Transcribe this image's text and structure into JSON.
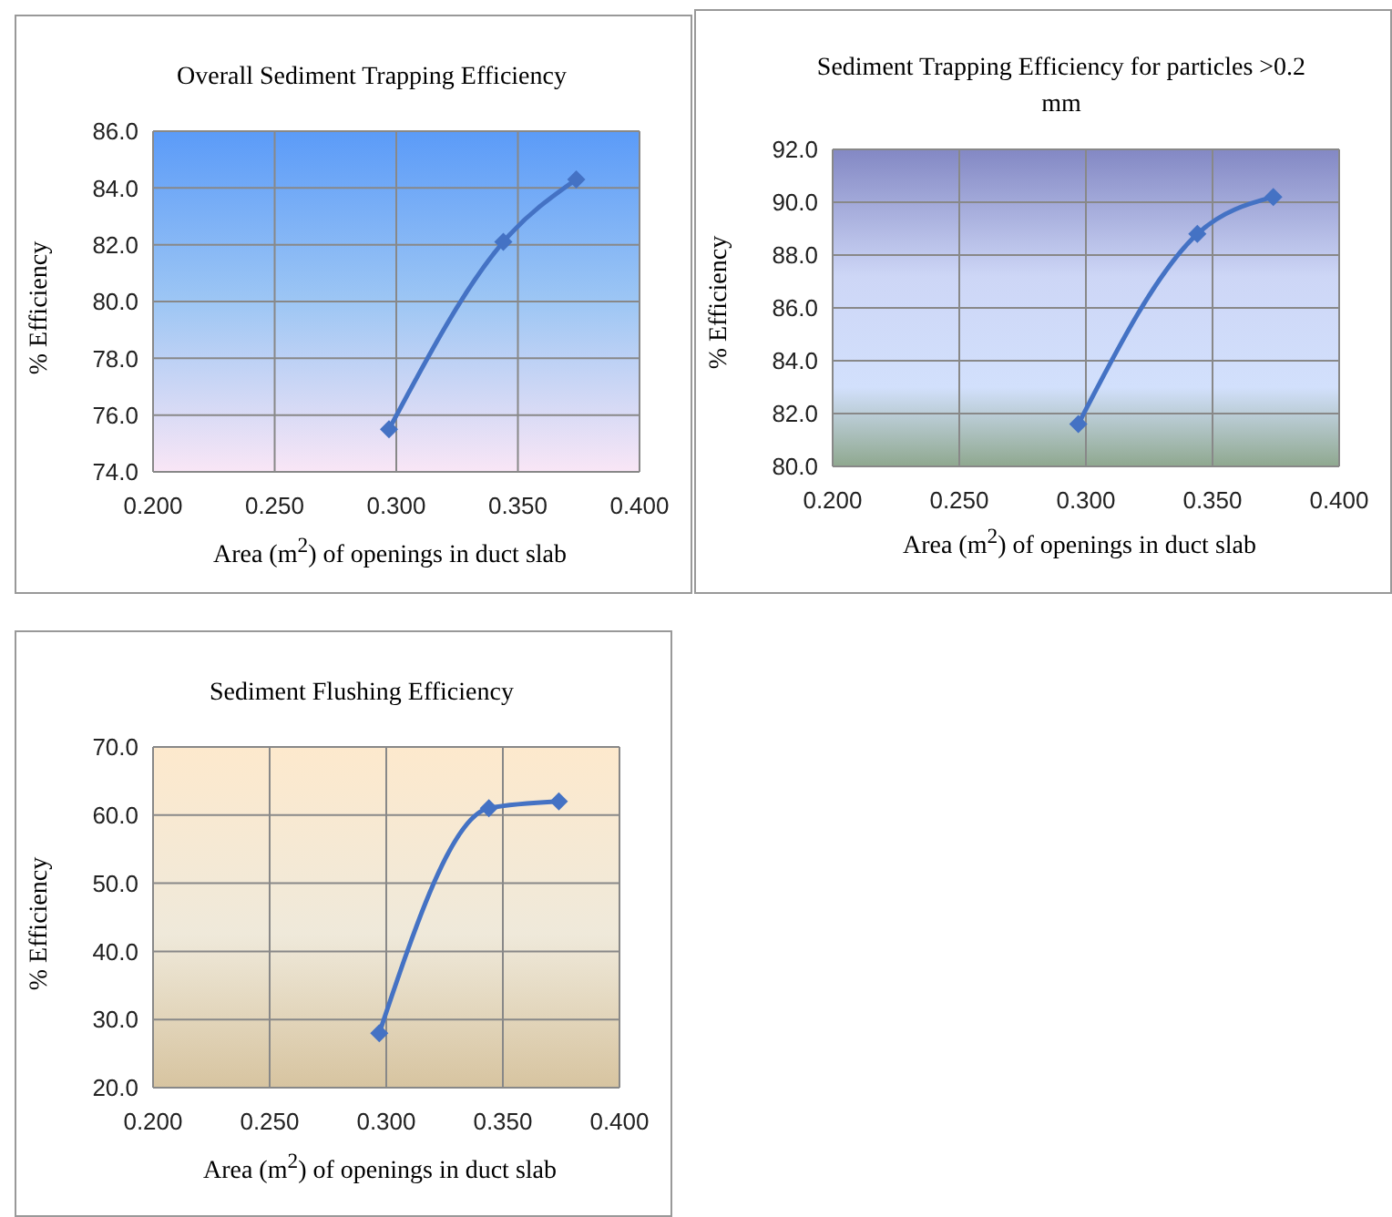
{
  "chart_data": [
    {
      "type": "line",
      "title": "Overall Sediment Trapping Efficiency",
      "xlabel": "Area (m$^{2}$)  of openings in duct slab",
      "ylabel": "% Efficiency",
      "x": [
        0.297,
        0.344,
        0.374
      ],
      "series": [
        {
          "color": "#4472c4",
          "values": [
            75.5,
            82.1,
            84.3
          ]
        }
      ],
      "xlim": [
        0.2,
        0.4
      ],
      "xticks": [
        {
          "value": 0.2,
          "label": "0.200"
        },
        {
          "value": 0.25,
          "label": "0.250"
        },
        {
          "value": 0.3,
          "label": "0.300"
        },
        {
          "value": 0.35,
          "label": "0.350"
        },
        {
          "value": 0.4,
          "label": "0.400"
        }
      ],
      "ylim": [
        74,
        86
      ],
      "yticks": [
        {
          "value": 74,
          "label": "74.0"
        },
        {
          "value": 76,
          "label": "76.0"
        },
        {
          "value": 78,
          "label": "78.0"
        },
        {
          "value": 80,
          "label": "80.0"
        },
        {
          "value": 82,
          "label": "82.0"
        },
        {
          "value": 84,
          "label": "84.0"
        },
        {
          "value": 86,
          "label": "86.0"
        }
      ],
      "grid": true,
      "marker": "diamond",
      "line_style": "solid",
      "legend": false
    },
    {
      "type": "line",
      "title": "Sediment Trapping Efficiency for particles >0.2 mm",
      "xlabel": "Area (m$^{2}$) of openings in duct slab",
      "ylabel": "% Efficiency",
      "x": [
        0.297,
        0.344,
        0.374
      ],
      "series": [
        {
          "color": "#4472c4",
          "values": [
            81.6,
            88.8,
            90.2
          ]
        }
      ],
      "xlim": [
        0.2,
        0.4
      ],
      "xticks": [
        {
          "value": 0.2,
          "label": "0.200"
        },
        {
          "value": 0.25,
          "label": "0.250"
        },
        {
          "value": 0.3,
          "label": "0.300"
        },
        {
          "value": 0.35,
          "label": "0.350"
        },
        {
          "value": 0.4,
          "label": "0.400"
        }
      ],
      "ylim": [
        80,
        92
      ],
      "yticks": [
        {
          "value": 80,
          "label": "80.0"
        },
        {
          "value": 82,
          "label": "82.0"
        },
        {
          "value": 84,
          "label": "84.0"
        },
        {
          "value": 86,
          "label": "86.0"
        },
        {
          "value": 88,
          "label": "88.0"
        },
        {
          "value": 90,
          "label": "90.0"
        },
        {
          "value": 92,
          "label": "92.0"
        }
      ],
      "grid": true,
      "marker": "diamond",
      "line_style": "solid",
      "legend": false
    },
    {
      "type": "line",
      "title": "Sediment Flushing Efficiency",
      "xlabel": "Area (m$^{2}$)  of openings in duct slab",
      "ylabel": "% Efficiency",
      "x": [
        0.297,
        0.344,
        0.374
      ],
      "series": [
        {
          "color": "#4472c4",
          "values": [
            28.0,
            61.0,
            62.0
          ]
        }
      ],
      "xlim": [
        0.2,
        0.4
      ],
      "xticks": [
        {
          "value": 0.2,
          "label": "0.200"
        },
        {
          "value": 0.25,
          "label": "0.250"
        },
        {
          "value": 0.3,
          "label": "0.300"
        },
        {
          "value": 0.35,
          "label": "0.350"
        },
        {
          "value": 0.4,
          "label": "0.400"
        }
      ],
      "ylim": [
        20,
        70
      ],
      "yticks": [
        {
          "value": 20,
          "label": "20.0"
        },
        {
          "value": 30,
          "label": "30.0"
        },
        {
          "value": 40,
          "label": "40.0"
        },
        {
          "value": 50,
          "label": "50.0"
        },
        {
          "value": 60,
          "label": "60.0"
        },
        {
          "value": 70,
          "label": "70.0"
        }
      ],
      "grid": true,
      "marker": "diamond",
      "line_style": "solid",
      "legend": false
    }
  ]
}
